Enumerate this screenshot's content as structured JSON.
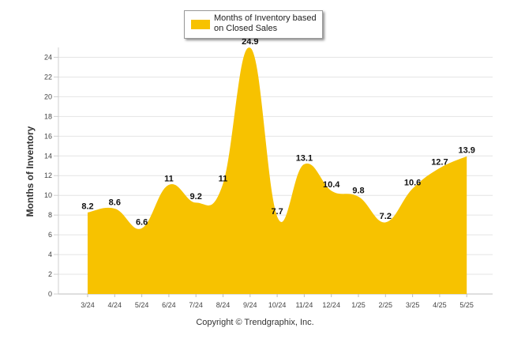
{
  "chart_data": {
    "type": "area",
    "categories": [
      "3/24",
      "4/24",
      "5/24",
      "6/24",
      "7/24",
      "8/24",
      "9/24",
      "10/24",
      "11/24",
      "12/24",
      "1/25",
      "2/25",
      "3/25",
      "4/25",
      "5/25"
    ],
    "series": [
      {
        "name": "Months of Inventory based on Closed Sales",
        "values": [
          8.2,
          8.6,
          6.6,
          11,
          9.2,
          11,
          24.9,
          7.7,
          13.1,
          10.4,
          9.8,
          7.2,
          10.6,
          12.7,
          13.9
        ],
        "labels": [
          "8.2",
          "8.6",
          "6.6",
          "11",
          "9.2",
          "11",
          "24.9",
          "7.7",
          "13.1",
          "10.4",
          "9.8",
          "7.2",
          "10.6",
          "12.7",
          "13.9"
        ],
        "color": "#f7c200"
      }
    ],
    "yticks": [
      "0",
      "2",
      "4",
      "6",
      "8",
      "10",
      "12",
      "14",
      "16",
      "18",
      "20",
      "22",
      "24"
    ],
    "ylim": [
      0,
      25
    ],
    "ylabel": "Months of Inventory",
    "xlabel": "",
    "grid": true,
    "legend_position": "top-center"
  },
  "legend": {
    "line1": "Months of Inventory based",
    "line2": "on Closed Sales"
  },
  "footer": {
    "copyright": "Copyright © Trendgraphix, Inc."
  }
}
